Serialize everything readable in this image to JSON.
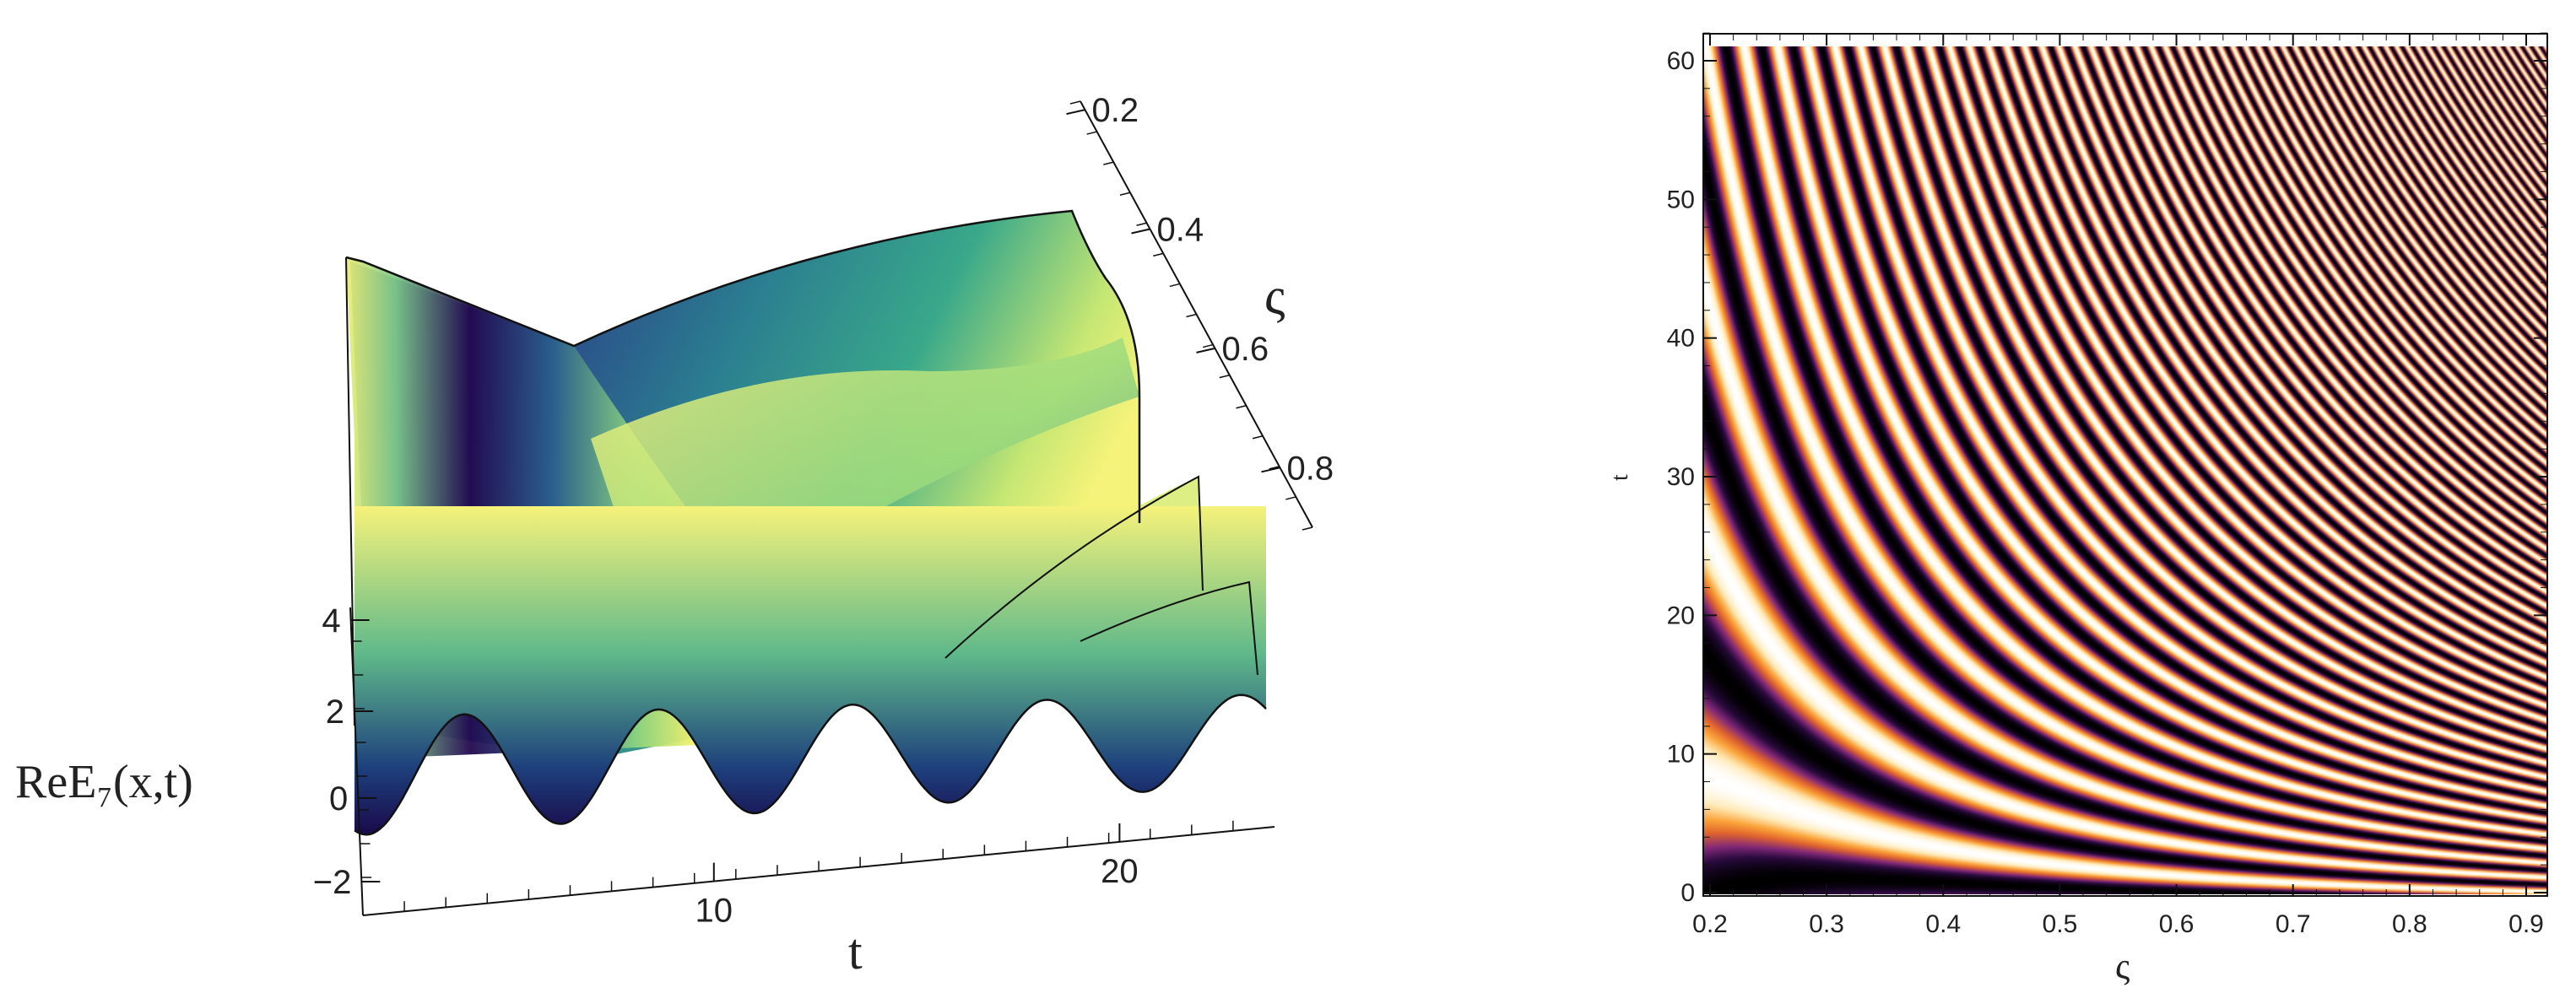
{
  "chart_data": [
    {
      "type": "surface3d",
      "zlabel": "ReE₇(x,t)",
      "xlabel": "t",
      "ylabel": "ς",
      "x_ticks": [
        "10",
        "20"
      ],
      "y_ticks": [
        "0.2",
        "0.4",
        "0.6",
        "0.8"
      ],
      "z_ticks": [
        "4",
        "2",
        "0",
        "−2"
      ],
      "x_range": [
        0,
        25
      ],
      "y_range": [
        0.2,
        0.9
      ],
      "z_range": [
        -2,
        5
      ],
      "colormap": [
        "#22075e",
        "#2b5d8c",
        "#2aa58a",
        "#a7e06a",
        "#fbf56f"
      ],
      "front_edge_troughs_t": [
        2.3,
        7.5,
        12.8,
        18.0,
        23.2
      ]
    },
    {
      "type": "heatmap",
      "xlabel": "ς",
      "ylabel": "t",
      "x_ticks": [
        "0.2",
        "0.3",
        "0.4",
        "0.5",
        "0.6",
        "0.7",
        "0.8",
        "0.9"
      ],
      "y_ticks": [
        "0",
        "10",
        "20",
        "30",
        "40",
        "50",
        "60"
      ],
      "xlim": [
        0.2,
        0.9
      ],
      "ylim": [
        0,
        62
      ],
      "colormap": [
        "#000000",
        "#3b0f4e",
        "#8b2a7a",
        "#e0662b",
        "#fba43a",
        "#fff0c0",
        "#ffffff"
      ]
    }
  ]
}
